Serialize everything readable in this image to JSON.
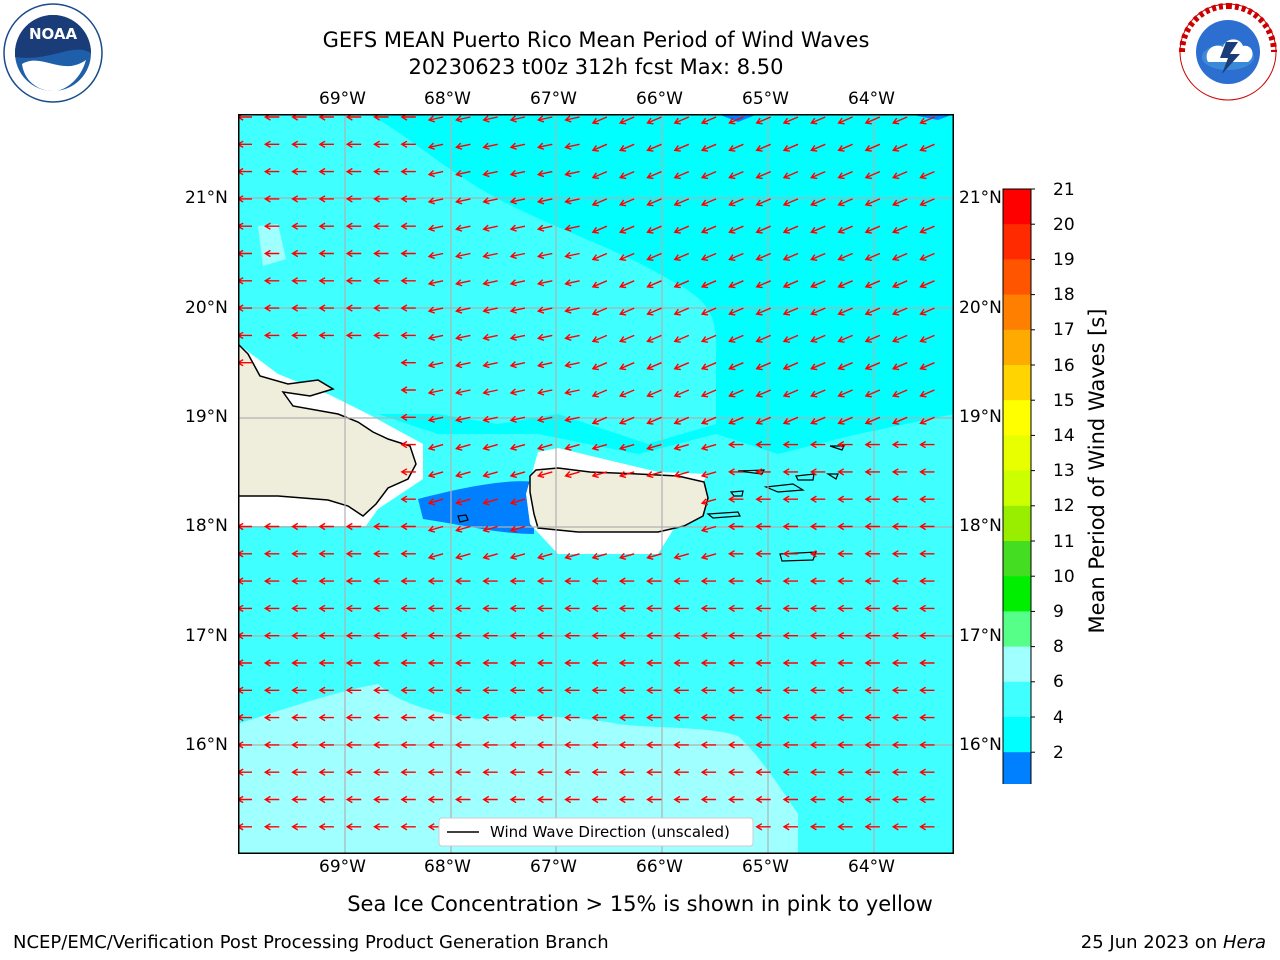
{
  "title": {
    "line1": "GEFS MEAN Puerto Rico Mean Period of Wind Waves",
    "line2": "20230623 t00z 312h fcst   Max: 8.50"
  },
  "logos": {
    "left": {
      "text": "NOAA",
      "ring_top": "NATIONAL OCEANIC AND ATMOSPHERIC ADMINISTRATION",
      "ring_bottom": "U.S. DEPARTMENT OF COMMERCE"
    },
    "right": {
      "ring_text": "NATIONAL WEATHER SERVICE"
    }
  },
  "map": {
    "lon_labels": [
      "69°W",
      "68°W",
      "67°W",
      "66°W",
      "65°W",
      "64°W"
    ],
    "lat_labels": [
      "21°N",
      "20°N",
      "19°N",
      "18°N",
      "17°N",
      "16°N"
    ],
    "legend_label": "Wind Wave Direction (unscaled)",
    "colors": {
      "ocean": "#00ffff",
      "wave_6_8": "#40ffff",
      "wave_8_9": "#a0ffff",
      "wave_2_4": "#0000ff",
      "wave_4_6": "#0080ff",
      "land": "#efeedc",
      "arrow": "#ff0000",
      "grid": "#b0b0b0"
    }
  },
  "colorbar": {
    "label": "Mean Period of Wind Waves [s]",
    "ticks": [
      "21",
      "20",
      "19",
      "18",
      "17",
      "16",
      "15",
      "14",
      "13",
      "12",
      "11",
      "10",
      "9",
      "8",
      "6",
      "4",
      "2"
    ],
    "colors": [
      "#ff0000",
      "#ff2a00",
      "#ff5500",
      "#ff8000",
      "#ffaa00",
      "#ffd400",
      "#ffff00",
      "#e8ff00",
      "#ccff00",
      "#99ee00",
      "#44dd22",
      "#00ee00",
      "#55ff88",
      "#a0ffff",
      "#40ffff",
      "#00ffff",
      "#0080ff"
    ],
    "extend_color": "#0000ff"
  },
  "note": "Sea Ice Concentration > 15% is shown in pink to yellow",
  "footer": {
    "left": "NCEP/EMC/Verification Post Processing Product Generation Branch",
    "date": "25 Jun 2023 on ",
    "machine": "Hera"
  }
}
